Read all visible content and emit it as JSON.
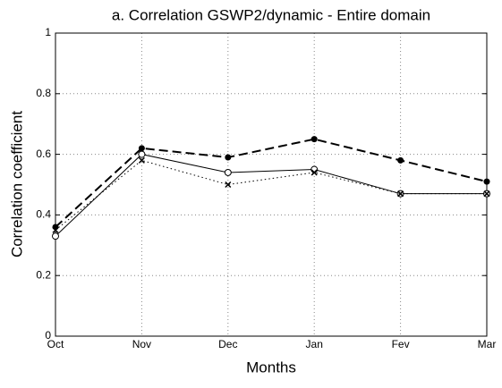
{
  "chart_data": {
    "type": "line",
    "title": "a. Correlation GSWP2/dynamic - Entire domain",
    "x_label": "Months",
    "y_label": "Correlation coefficient",
    "categories": [
      "Oct",
      "Nov",
      "Dec",
      "Jan",
      "Fev",
      "Mar"
    ],
    "series": [
      {
        "color": "#000000",
        "style": "dashed",
        "marker": "dot",
        "values": [
          0.36,
          0.62,
          0.59,
          0.65,
          0.58,
          0.51
        ]
      },
      {
        "color": "#000000",
        "style": "solid",
        "marker": "circle",
        "values": [
          0.33,
          0.6,
          0.54,
          0.55,
          0.47,
          0.47
        ]
      },
      {
        "color": "#000000",
        "style": "dotted",
        "marker": "x",
        "values": [
          0.35,
          0.58,
          0.5,
          0.54,
          0.47,
          0.47
        ]
      }
    ],
    "ylim": [
      0,
      1
    ],
    "yticks": [
      0,
      0.2,
      0.4,
      0.6,
      0.8,
      1
    ],
    "grid": true
  }
}
